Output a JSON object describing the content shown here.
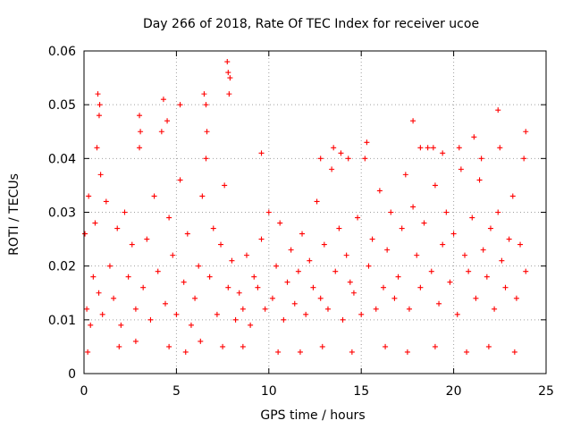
{
  "chart_data": {
    "type": "scatter",
    "title": "Day 266 of 2018, Rate Of TEC Index for receiver ucoe",
    "xlabel": "GPS time / hours",
    "ylabel": "ROTI / TECUs",
    "xlim": [
      0,
      25
    ],
    "ylim": [
      0,
      0.06
    ],
    "grid": true,
    "marker": "+",
    "color": "#ff0000",
    "xticks": [
      0,
      5,
      10,
      15,
      20,
      25
    ],
    "xtick_labels": [
      "0",
      "5",
      "10",
      "15",
      "20",
      "25"
    ],
    "yticks": [
      0,
      0.01,
      0.02,
      0.03,
      0.04,
      0.05,
      0.06
    ],
    "ytick_labels": [
      "0",
      "0.01",
      "0.02",
      "0.03",
      "0.04",
      "0.05",
      "0.06"
    ],
    "series": [
      {
        "name": "ROTI",
        "x": [
          0.05,
          0.15,
          0.25,
          0.35,
          0.5,
          0.6,
          0.7,
          0.8,
          0.9,
          1.0,
          1.2,
          1.4,
          1.6,
          1.8,
          2.0,
          2.2,
          2.4,
          2.6,
          2.8,
          3.0,
          3.2,
          3.4,
          3.6,
          3.8,
          4.0,
          4.2,
          4.4,
          4.6,
          4.8,
          5.0,
          5.2,
          5.4,
          5.6,
          5.8,
          6.0,
          6.2,
          6.4,
          6.6,
          6.8,
          7.0,
          7.2,
          7.4,
          7.6,
          7.8,
          8.0,
          8.2,
          8.4,
          8.6,
          8.8,
          9.0,
          9.2,
          9.4,
          9.6,
          9.8,
          10.0,
          10.2,
          10.4,
          10.6,
          10.8,
          11.0,
          11.2,
          11.4,
          11.6,
          11.8,
          12.0,
          12.2,
          12.4,
          12.6,
          12.8,
          13.0,
          13.2,
          13.4,
          13.6,
          13.8,
          14.0,
          14.2,
          14.4,
          14.6,
          14.8,
          15.0,
          15.2,
          15.4,
          15.6,
          15.8,
          16.0,
          16.2,
          16.4,
          16.6,
          16.8,
          17.0,
          17.2,
          17.4,
          17.6,
          17.8,
          18.0,
          18.2,
          18.4,
          18.6,
          18.8,
          19.0,
          19.2,
          19.4,
          19.6,
          19.8,
          20.0,
          20.2,
          20.4,
          20.6,
          20.8,
          21.0,
          21.2,
          21.4,
          21.6,
          21.8,
          22.0,
          22.2,
          22.4,
          22.6,
          22.8,
          23.0,
          23.2,
          23.4,
          23.6,
          23.8,
          23.9,
          0.75,
          0.85,
          0.82,
          3.0,
          3.05,
          4.3,
          4.5,
          5.2,
          6.5,
          6.6,
          6.65,
          7.75,
          7.8,
          7.85,
          7.9,
          9.6,
          12.8,
          13.5,
          13.9,
          14.3,
          15.3,
          17.8,
          18.2,
          18.9,
          19.4,
          20.3,
          21.1,
          21.5,
          22.4,
          22.5,
          23.9,
          0.2,
          1.9,
          2.8,
          4.6,
          5.5,
          6.3,
          7.5,
          8.6,
          10.5,
          11.7,
          12.9,
          14.5,
          16.3,
          17.5,
          19.0,
          20.7,
          21.9,
          23.3
        ],
        "y": [
          0.026,
          0.012,
          0.033,
          0.009,
          0.018,
          0.028,
          0.042,
          0.015,
          0.037,
          0.011,
          0.032,
          0.02,
          0.014,
          0.027,
          0.009,
          0.03,
          0.018,
          0.024,
          0.012,
          0.042,
          0.016,
          0.025,
          0.01,
          0.033,
          0.019,
          0.045,
          0.013,
          0.029,
          0.022,
          0.011,
          0.036,
          0.017,
          0.026,
          0.009,
          0.014,
          0.02,
          0.033,
          0.04,
          0.018,
          0.027,
          0.011,
          0.024,
          0.035,
          0.016,
          0.021,
          0.01,
          0.015,
          0.012,
          0.022,
          0.009,
          0.018,
          0.016,
          0.025,
          0.012,
          0.03,
          0.014,
          0.02,
          0.028,
          0.01,
          0.017,
          0.023,
          0.013,
          0.019,
          0.026,
          0.011,
          0.021,
          0.016,
          0.032,
          0.014,
          0.024,
          0.012,
          0.038,
          0.019,
          0.027,
          0.01,
          0.022,
          0.017,
          0.015,
          0.029,
          0.011,
          0.04,
          0.02,
          0.025,
          0.012,
          0.034,
          0.016,
          0.023,
          0.03,
          0.014,
          0.018,
          0.027,
          0.037,
          0.012,
          0.031,
          0.022,
          0.016,
          0.028,
          0.042,
          0.019,
          0.035,
          0.013,
          0.024,
          0.03,
          0.017,
          0.026,
          0.011,
          0.038,
          0.022,
          0.019,
          0.029,
          0.014,
          0.036,
          0.023,
          0.018,
          0.027,
          0.012,
          0.03,
          0.021,
          0.016,
          0.025,
          0.033,
          0.014,
          0.024,
          0.04,
          0.019,
          0.052,
          0.05,
          0.048,
          0.048,
          0.045,
          0.051,
          0.047,
          0.05,
          0.052,
          0.05,
          0.045,
          0.058,
          0.056,
          0.052,
          0.055,
          0.041,
          0.04,
          0.042,
          0.041,
          0.04,
          0.043,
          0.047,
          0.042,
          0.042,
          0.041,
          0.042,
          0.044,
          0.04,
          0.049,
          0.042,
          0.045,
          0.004,
          0.005,
          0.006,
          0.005,
          0.004,
          0.006,
          0.005,
          0.005,
          0.004,
          0.004,
          0.005,
          0.004,
          0.005,
          0.004,
          0.005,
          0.004,
          0.005,
          0.004
        ]
      }
    ]
  }
}
